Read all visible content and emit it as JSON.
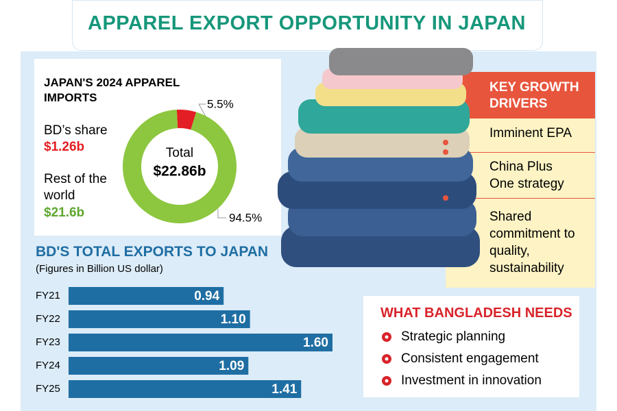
{
  "title": "APPAREL EXPORT OPPORTUNITY IN JAPAN",
  "chart_data": [
    {
      "type": "donut",
      "title": "JAPAN'S 2024 APPAREL IMPORTS",
      "categories": [
        "BD’s share",
        "Rest of the world"
      ],
      "values": [
        5.5,
        94.5
      ],
      "value_labels": [
        "5.5%",
        "94.5%"
      ],
      "amounts": [
        "$1.26b",
        "$21.6b"
      ],
      "colors": [
        "#e31e24",
        "#8dc63f"
      ],
      "center_label": "Total",
      "center_value": "$22.86b"
    },
    {
      "type": "hbar",
      "title": "BD'S TOTAL EXPORTS TO JAPAN",
      "subtitle": "(Figures in Billion US dollar)",
      "categories": [
        "FY21",
        "FY22",
        "FY23",
        "FY24",
        "FY25"
      ],
      "values": [
        0.94,
        1.1,
        1.6,
        1.09,
        1.41
      ],
      "value_labels": [
        "0.94",
        "1.10",
        "1.60",
        "1.09",
        "1.41"
      ],
      "xlim": [
        0,
        1.6
      ],
      "color": "#1f6ea3"
    }
  ],
  "key_growth_drivers": {
    "title": "KEY GROWTH DRIVERS",
    "items": [
      "Imminent EPA",
      "China Plus One strategy",
      "Shared commitment to quality, sustainability"
    ]
  },
  "needs": {
    "title": "WHAT BANGLADESH NEEDS",
    "items": [
      "Strategic planning",
      "Consistent engagement",
      "Investment in innovation"
    ]
  }
}
